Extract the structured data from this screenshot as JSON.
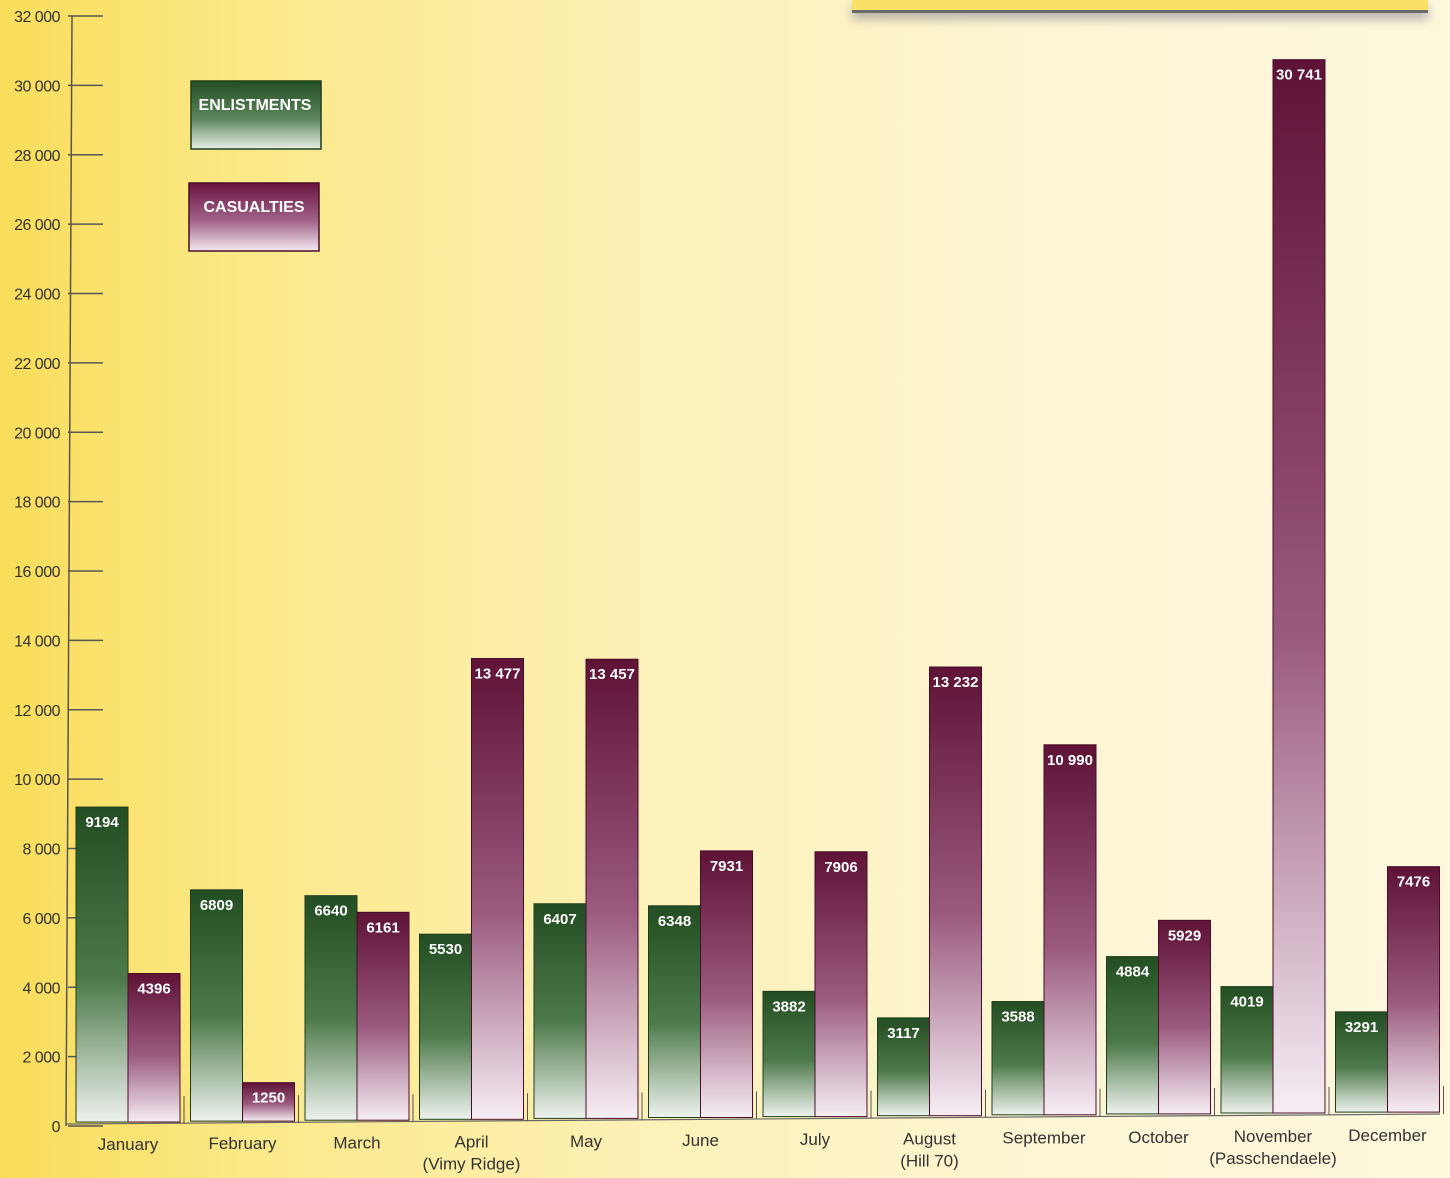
{
  "chart_data": {
    "type": "bar",
    "categories": [
      "January",
      "February",
      "March",
      "April",
      "May",
      "June",
      "July",
      "August",
      "September",
      "October",
      "November",
      "December"
    ],
    "category_sublabels": [
      "",
      "",
      "",
      "(Vimy Ridge)",
      "",
      "",
      "",
      "(Hill 70)",
      "",
      "",
      "(Passchendaele)",
      ""
    ],
    "series": [
      {
        "name": "ENLISTMENTS",
        "values": [
          9194,
          6809,
          6640,
          5530,
          6407,
          6348,
          3882,
          3117,
          3588,
          4884,
          4019,
          3291
        ]
      },
      {
        "name": "CASUALTIES",
        "values": [
          4396,
          1250,
          6161,
          13477,
          13457,
          7931,
          7906,
          13232,
          10990,
          5929,
          30741,
          7476
        ]
      }
    ],
    "value_labels": [
      [
        "9194",
        "6809",
        "6640",
        "5530",
        "6407",
        "6348",
        "3882",
        "3117",
        "3588",
        "4884",
        "4019",
        "3291"
      ],
      [
        "4396",
        "1250",
        "6161",
        "13 477",
        "13 457",
        "7931",
        "7906",
        "13 232",
        "10 990",
        "5929",
        "30 741",
        "7476"
      ]
    ],
    "ylim": [
      0,
      32000
    ],
    "yticks": [
      0,
      2000,
      4000,
      6000,
      8000,
      10000,
      12000,
      14000,
      16000,
      18000,
      20000,
      22000,
      24000,
      26000,
      28000,
      30000,
      32000
    ],
    "ytick_labels": [
      "0",
      "2 000",
      "4 000",
      "6 000",
      "8 000",
      "10 000",
      "12 000",
      "14 000",
      "16 000",
      "18 000",
      "20 000",
      "22 000",
      "24 000",
      "26 000",
      "28 000",
      "30 000",
      "32 000"
    ],
    "legend_position": "top-left",
    "grid": false,
    "colors": {
      "enlistments": "#2f5a2c",
      "casualties": "#6e1840"
    }
  }
}
